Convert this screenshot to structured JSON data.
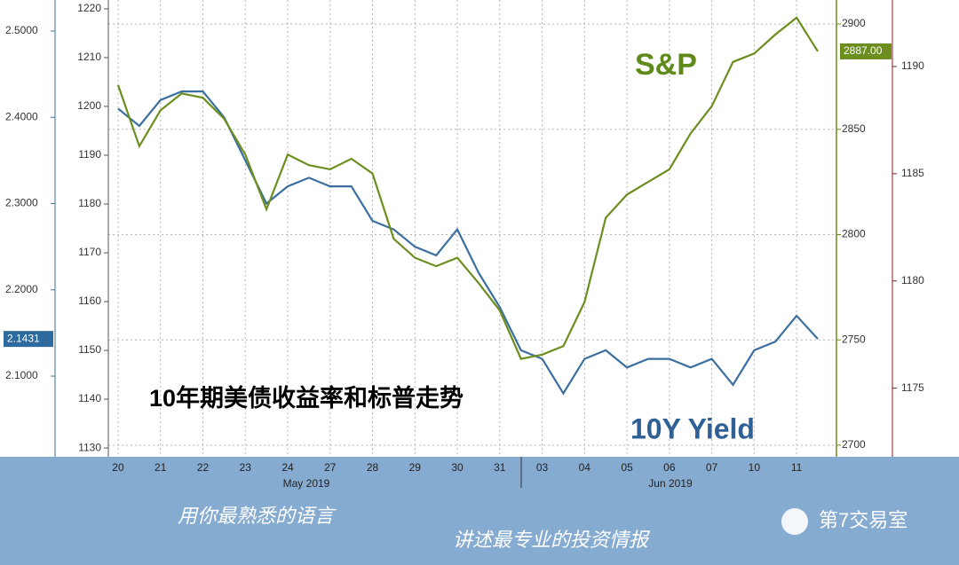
{
  "chart_data": {
    "type": "line",
    "x": [
      0,
      0.5,
      1,
      1.5,
      2,
      2.5,
      3,
      3.5,
      4,
      4.5,
      5,
      5.5,
      6,
      6.5,
      7,
      7.5,
      8,
      8.5,
      9,
      9.5,
      10,
      10.5,
      11,
      11.5,
      12,
      12.5,
      13,
      13.5,
      14,
      14.5,
      15,
      15.5,
      16,
      16.5
    ],
    "xlim": [
      -0.23,
      16.94
    ],
    "xticks": [
      {
        "value": 0,
        "label": "20"
      },
      {
        "value": 1,
        "label": "21"
      },
      {
        "value": 2,
        "label": "22"
      },
      {
        "value": 3,
        "label": "23"
      },
      {
        "value": 4,
        "label": "24"
      },
      {
        "value": 5,
        "label": "27"
      },
      {
        "value": 6,
        "label": "28"
      },
      {
        "value": 7,
        "label": "29"
      },
      {
        "value": 8,
        "label": "30"
      },
      {
        "value": 9,
        "label": "31"
      },
      {
        "value": 10,
        "label": "03"
      },
      {
        "value": 11,
        "label": "04"
      },
      {
        "value": 12,
        "label": "05"
      },
      {
        "value": 13,
        "label": "06"
      },
      {
        "value": 14,
        "label": "07"
      },
      {
        "value": 15,
        "label": "10"
      },
      {
        "value": 16,
        "label": "11"
      }
    ],
    "x_groups": [
      "May 2019",
      "Jun 2019"
    ],
    "ylim": [
      2.0065,
      2.536
    ],
    "yticks": [
      {
        "value": 2.1,
        "label": "2.1000"
      },
      {
        "value": 2.2,
        "label": "2.2000"
      },
      {
        "value": 2.3,
        "label": "2.3000"
      },
      {
        "value": 2.4,
        "label": "2.4000"
      },
      {
        "value": 2.5,
        "label": "2.5000"
      }
    ],
    "y2lim": [
      2694.5,
      2911.4
    ],
    "y2ticks": [
      2700,
      2750,
      2800,
      2850,
      2900
    ],
    "extra_axes": [
      {
        "side": "left",
        "color": "#555555",
        "lim": [
          1128.2,
          1221.8
        ],
        "ticks": [
          1130,
          1140,
          1150,
          1160,
          1170,
          1180,
          1190,
          1200,
          1210,
          1220
        ]
      },
      {
        "side": "right",
        "color": "#8b1a1a",
        "lim": [
          1171.8,
          1193.1
        ],
        "ticks": [
          1175,
          1180,
          1185,
          1190
        ]
      }
    ],
    "grid": true,
    "series": [
      {
        "name": "10Y Yield",
        "color": "#3b6f9f",
        "values": [
          2.41,
          2.39,
          2.42,
          2.43,
          2.43,
          2.4,
          2.35,
          2.3,
          2.32,
          2.33,
          2.32,
          2.32,
          2.28,
          2.27,
          2.25,
          2.24,
          2.27,
          2.22,
          2.18,
          2.13,
          2.12,
          2.08,
          2.12,
          2.13,
          2.11,
          2.12,
          2.12,
          2.11,
          2.12,
          2.09,
          2.13,
          2.14,
          2.17,
          2.1431
        ]
      },
      {
        "name": "S&P",
        "color": "#6b8e1e",
        "axis": "y2",
        "values": [
          2871,
          2842,
          2859,
          2867,
          2865,
          2855,
          2838,
          2812,
          2838,
          2833,
          2831,
          2836,
          2829,
          2798,
          2789,
          2785,
          2789,
          2777,
          2764,
          2741,
          2743,
          2747,
          2768,
          2808,
          2819,
          2825,
          2831,
          2848,
          2861,
          2882,
          2886,
          2895,
          2903,
          2887
        ],
        "value_labels": {
          "33": "2887.00"
        }
      }
    ],
    "annotations": [
      "10年期美债收益率和标普走势",
      "用你最熟悉的语言",
      "讲述最专业的投资情报",
      "第7交易室"
    ]
  }
}
